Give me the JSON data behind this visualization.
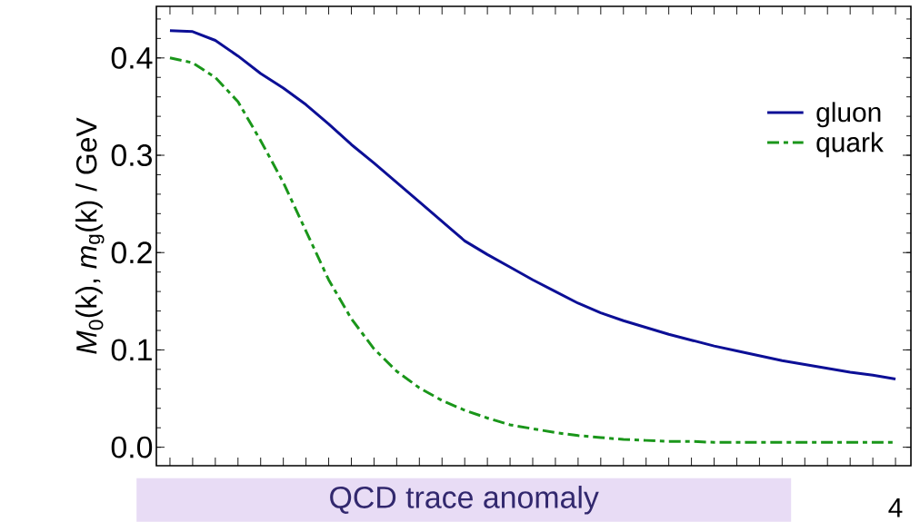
{
  "chart_data": {
    "type": "line",
    "ylabel": "*M*$_{0}$(k), *m*$_{g}$(k) / GeV",
    "categories": [
      null,
      null,
      null,
      null,
      null,
      null,
      null,
      null,
      null,
      null,
      null,
      null,
      null,
      null,
      null,
      null,
      null,
      null,
      null,
      null,
      null,
      null,
      null,
      null,
      null,
      null,
      null,
      null,
      null,
      null,
      null,
      null,
      null
    ],
    "series": [
      {
        "name": "gluon",
        "color": "#0c0f96",
        "line_style": "solid",
        "values": [
          0.428,
          0.427,
          0.418,
          0.402,
          0.384,
          0.369,
          0.352,
          0.332,
          0.311,
          0.292,
          0.272,
          0.252,
          0.232,
          0.212,
          0.198,
          0.185,
          0.172,
          0.16,
          0.148,
          0.138,
          0.13,
          0.123,
          0.116,
          0.11,
          0.104,
          0.099,
          0.094,
          0.089,
          0.085,
          0.081,
          0.077,
          0.074,
          0.07
        ]
      },
      {
        "name": "quark",
        "color": "#1a961a",
        "line_style": "dashdot",
        "values": [
          0.4,
          0.395,
          0.38,
          0.355,
          0.315,
          0.272,
          0.222,
          0.172,
          0.132,
          0.101,
          0.078,
          0.061,
          0.048,
          0.038,
          0.03,
          0.023,
          0.019,
          0.015,
          0.012,
          0.01,
          0.008,
          0.007,
          0.006,
          0.006,
          0.005,
          0.005,
          0.005,
          0.005,
          0.005,
          0.005,
          0.005,
          0.005,
          0.005
        ]
      }
    ],
    "ylim": [
      -0.019,
      0.453
    ],
    "yticks": [
      {
        "value": 0,
        "label": "0.0"
      },
      0.1,
      0.2,
      0.3,
      0.4
    ],
    "legend": "top right",
    "grid": false,
    "marker": "none",
    "annotations": [
      "QCD trace anomaly",
      "4"
    ]
  }
}
